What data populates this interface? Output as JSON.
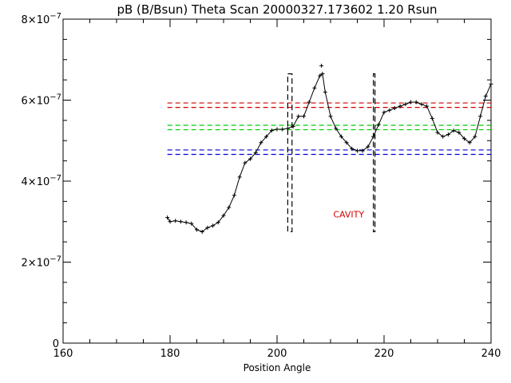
{
  "chart_data": {
    "type": "line",
    "title": "pB (B/Bsun) Theta Scan 20000327.173602 1.20 Rsun",
    "xlabel": "Position Angle",
    "ylabel": "",
    "xlim": [
      160,
      240
    ],
    "ylim": [
      0,
      8e-07
    ],
    "x_ticks": [
      160,
      180,
      200,
      220,
      240
    ],
    "x_tick_labels": [
      "160",
      "180",
      "200",
      "220",
      "240"
    ],
    "y_ticks": [
      0,
      2e-07,
      4e-07,
      6e-07,
      8e-07
    ],
    "y_tick_labels": [
      {
        "mantissa": "0",
        "exponent": ""
      },
      {
        "mantissa": "2×10",
        "exponent": "−7"
      },
      {
        "mantissa": "4×10",
        "exponent": "−7"
      },
      {
        "mantissa": "6×10",
        "exponent": "−7"
      },
      {
        "mantissa": "8×10",
        "exponent": "−7"
      }
    ],
    "grid": false,
    "series": [
      {
        "kind": "line+plus-markers",
        "color": "#000000",
        "x": [
          179.5,
          180.0,
          181.0,
          182.0,
          183.0,
          184.0,
          185.0,
          186.0,
          187.0,
          188.0,
          189.0,
          190.0,
          191.0,
          192.0,
          193.0,
          194.0,
          195.0,
          196.0,
          197.0,
          198.0,
          199.0,
          200.0,
          201.0,
          202.0,
          203.0,
          204.0,
          205.0,
          206.0,
          207.0,
          208.0,
          208.5,
          209.0,
          210.0,
          211.0,
          212.0,
          213.0,
          214.0,
          215.0,
          216.0,
          217.0,
          218.0,
          219.0,
          220.0,
          221.0,
          222.0,
          223.0,
          224.0,
          225.0,
          226.0,
          227.0,
          228.0,
          229.0,
          230.0,
          231.0,
          232.0,
          233.0,
          234.0,
          235.0,
          236.0,
          237.0,
          238.0,
          239.0,
          240.0
        ],
        "y": [
          3.1e-07,
          3e-07,
          3.02e-07,
          3e-07,
          2.98e-07,
          2.95e-07,
          2.8e-07,
          2.75e-07,
          2.85e-07,
          2.9e-07,
          2.98e-07,
          3.15e-07,
          3.35e-07,
          3.65e-07,
          4.1e-07,
          4.45e-07,
          4.55e-07,
          4.7e-07,
          4.95e-07,
          5.1e-07,
          5.25e-07,
          5.28e-07,
          5.28e-07,
          5.3e-07,
          5.35e-07,
          5.6e-07,
          5.6e-07,
          5.95e-07,
          6.3e-07,
          6.6e-07,
          6.65e-07,
          6.2e-07,
          5.6e-07,
          5.3e-07,
          5.1e-07,
          4.95e-07,
          4.8e-07,
          4.75e-07,
          4.75e-07,
          4.85e-07,
          5.1e-07,
          5.4e-07,
          5.7e-07,
          5.75e-07,
          5.8e-07,
          5.85e-07,
          5.9e-07,
          5.95e-07,
          5.95e-07,
          5.9e-07,
          5.85e-07,
          5.55e-07,
          5.2e-07,
          5.1e-07,
          5.15e-07,
          5.25e-07,
          5.2e-07,
          5.05e-07,
          4.95e-07,
          5.1e-07,
          5.6e-07,
          6.1e-07,
          6.4e-07
        ],
        "outliers": [
          {
            "x": 208.3,
            "y": 6.85e-07
          }
        ]
      }
    ],
    "reference_lines": [
      {
        "color": "#d40000",
        "style": "dashed",
        "x": [
          179.5,
          240
        ],
        "y": 5.93e-07
      },
      {
        "color": "#d40000",
        "style": "dashed",
        "x": [
          179.5,
          240
        ],
        "y": 5.82e-07
      },
      {
        "color": "#00cc00",
        "style": "dashed",
        "x": [
          179.5,
          240
        ],
        "y": 5.38e-07
      },
      {
        "color": "#00cc00",
        "style": "dashed",
        "x": [
          179.5,
          240
        ],
        "y": 5.27e-07
      },
      {
        "color": "#0000d0",
        "style": "dashed",
        "x": [
          179.5,
          240
        ],
        "y": 4.77e-07
      },
      {
        "color": "#0000d0",
        "style": "dashed",
        "x": [
          179.5,
          240
        ],
        "y": 4.66e-07
      }
    ],
    "boundary_boxes": [
      {
        "x": [
          202.0,
          202.8
        ],
        "y": [
          2.75e-07,
          6.65e-07
        ],
        "style": "dashed",
        "color": "#000000"
      },
      {
        "x": [
          218.0,
          218.3
        ],
        "y": [
          2.75e-07,
          6.65e-07
        ],
        "style": "dashed",
        "color": "#000000"
      }
    ],
    "annotations": [
      {
        "text": "CAVITY",
        "x": 210.5,
        "y": 3.1e-07,
        "color": "#d40000"
      }
    ]
  }
}
